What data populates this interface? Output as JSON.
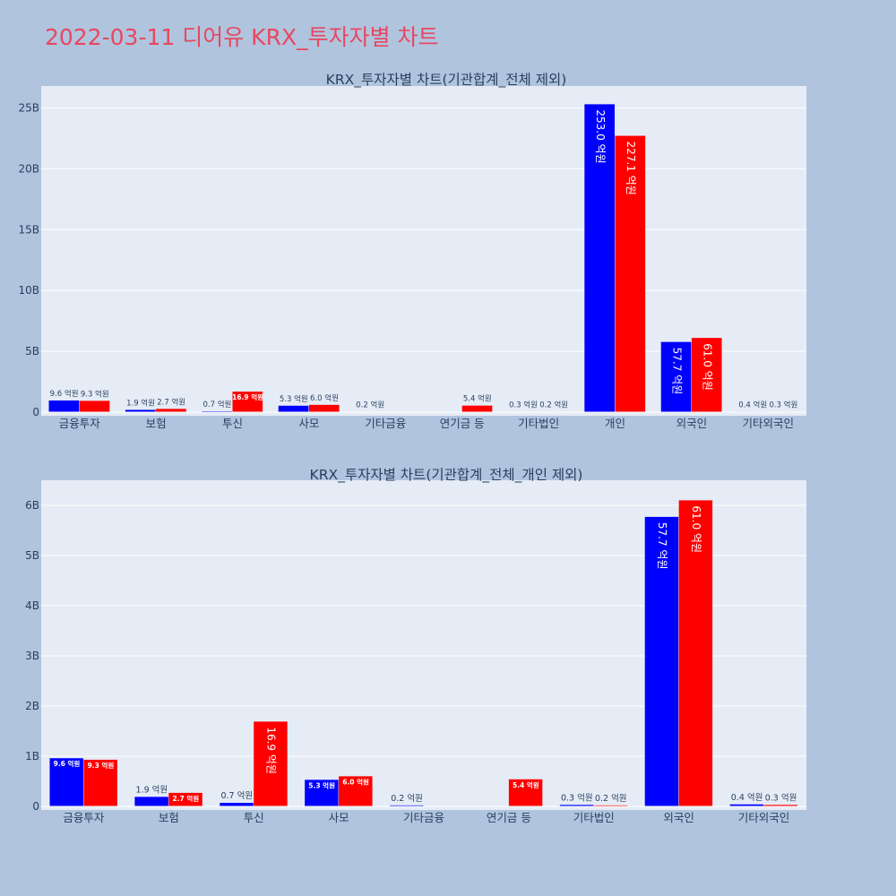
{
  "page": {
    "title": "2022-03-11 디어유 KRX_투자자별 차트"
  },
  "colors": {
    "background": "#b0c4de",
    "plot_background": "#e5ecf6",
    "title": "#e8475f",
    "series_a": "#0000ff",
    "series_b": "#ff0000",
    "text": "#2a3f5f"
  },
  "chart_data": [
    {
      "type": "bar",
      "title": "KRX_투자자별 차트(기관합계_전체 제외)",
      "categories": [
        "금융투자",
        "보험",
        "투신",
        "사모",
        "기타금융",
        "연기금 등",
        "기타법인",
        "개인",
        "외국인",
        "기타외국인"
      ],
      "ylim": [
        0,
        26.8
      ],
      "yticks": [
        0,
        5,
        10,
        15,
        20,
        25
      ],
      "ytick_labels": [
        "0",
        "5B",
        "10B",
        "15B",
        "20B",
        "25B"
      ],
      "grid": true,
      "legend": "none",
      "series": [
        {
          "color": "#0000ff",
          "values": [
            0.96,
            0.19,
            0.07,
            0.53,
            0.02,
            0,
            0.03,
            25.3,
            5.77,
            0.04
          ],
          "labels": [
            "9.6 억원",
            "1.9 억원",
            "0.7 억원",
            "5.3 억원",
            "0.2 억원",
            "",
            "0.3 억원",
            "253.0 억원",
            "57.7 억원",
            "0.4 억원"
          ]
        },
        {
          "color": "#ff0000",
          "values": [
            0.93,
            0.27,
            1.69,
            0.6,
            0,
            0.54,
            0.02,
            22.71,
            6.1,
            0.03
          ],
          "labels": [
            "9.3 억원",
            "2.7 억원",
            "16.9 억원",
            "6.0 억원",
            "",
            "5.4 억원",
            "0.2 억원",
            "227.1 억원",
            "61.0 억원",
            "0.3 억원"
          ]
        }
      ]
    },
    {
      "type": "bar",
      "title": "KRX_투자자별 차트(기관합계_전체_개인 제외)",
      "categories": [
        "금융투자",
        "보험",
        "투신",
        "사모",
        "기타금융",
        "연기금 등",
        "기타법인",
        "외국인",
        "기타외국인"
      ],
      "ylim": [
        0,
        6.5
      ],
      "yticks": [
        0,
        1,
        2,
        3,
        4,
        5,
        6
      ],
      "ytick_labels": [
        "0",
        "1B",
        "2B",
        "3B",
        "4B",
        "5B",
        "6B"
      ],
      "grid": true,
      "legend": "none",
      "series": [
        {
          "color": "#0000ff",
          "values": [
            0.96,
            0.19,
            0.07,
            0.53,
            0.02,
            0,
            0.03,
            5.77,
            0.04
          ],
          "labels": [
            "9.6 억원",
            "1.9 억원",
            "0.7 억원",
            "5.3 억원",
            "0.2 억원",
            "",
            "0.3 억원",
            "57.7 억원",
            "0.4 억원"
          ]
        },
        {
          "color": "#ff0000",
          "values": [
            0.93,
            0.27,
            1.69,
            0.6,
            0,
            0.54,
            0.02,
            6.1,
            0.03
          ],
          "labels": [
            "9.3 억원",
            "2.7 억원",
            "16.9 억원",
            "6.0 억원",
            "",
            "5.4 억원",
            "0.2 억원",
            "61.0 억원",
            "0.3 억원"
          ]
        }
      ]
    }
  ]
}
